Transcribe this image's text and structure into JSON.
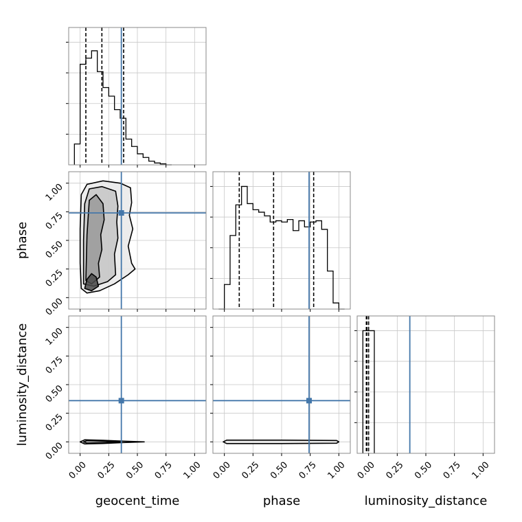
{
  "chart_data": {
    "type": "corner",
    "params": [
      "geocent_time",
      "phase",
      "luminosity_distance"
    ],
    "axis_labels": {
      "x": [
        "geocent_time",
        "phase",
        "luminosity_distance"
      ],
      "y": [
        "phase",
        "luminosity_distance"
      ]
    },
    "ticks": {
      "values": [
        0.0,
        0.25,
        0.5,
        0.75,
        1.0
      ],
      "labels": [
        "0.00",
        "0.25",
        "0.50",
        "0.75",
        "1.00"
      ]
    },
    "ranges": {
      "geocent_time": [
        -0.1,
        1.1
      ],
      "phase": [
        -0.1,
        1.1
      ],
      "luminosity_distance": [
        -0.1,
        1.1
      ]
    },
    "truths": {
      "geocent_time": 0.36,
      "phase": 0.74,
      "luminosity_distance": 0.36
    },
    "truth_color": "#4477aa",
    "grid": true,
    "histograms": {
      "geocent_time": {
        "bin_edges": [
          -0.05,
          0.0,
          0.05,
          0.1,
          0.15,
          0.2,
          0.25,
          0.3,
          0.35,
          0.4,
          0.45,
          0.5,
          0.55,
          0.6,
          0.65,
          0.7,
          0.75,
          0.8
        ],
        "counts": [
          0.17,
          0.82,
          0.87,
          0.93,
          0.76,
          0.63,
          0.56,
          0.45,
          0.38,
          0.21,
          0.15,
          0.09,
          0.06,
          0.03,
          0.015,
          0.008,
          0.0
        ],
        "quantiles": [
          0.05,
          0.19,
          0.38
        ]
      },
      "phase": {
        "bin_edges": [
          -0.05,
          0.0,
          0.05,
          0.1,
          0.15,
          0.2,
          0.25,
          0.3,
          0.35,
          0.4,
          0.45,
          0.5,
          0.55,
          0.6,
          0.65,
          0.7,
          0.75,
          0.8,
          0.85,
          0.9,
          0.95,
          1.0,
          1.05
        ],
        "counts": [
          0.0,
          0.2,
          0.6,
          0.85,
          1.0,
          0.86,
          0.81,
          0.79,
          0.76,
          0.71,
          0.72,
          0.71,
          0.73,
          0.64,
          0.72,
          0.67,
          0.71,
          0.72,
          0.65,
          0.31,
          0.05,
          0.0
        ],
        "quantiles": [
          0.13,
          0.43,
          0.78
        ]
      },
      "luminosity_distance": {
        "bin_edges": [
          -0.05,
          0.0,
          0.05
        ],
        "counts": [
          1.0,
          1.0
        ],
        "quantiles": [
          -0.02,
          -0.015,
          0.0
        ]
      }
    },
    "contours": {
      "phase_vs_geocent_time": {
        "levels": [
          [
            [
              0.01,
              0.08
            ],
            [
              0.06,
              0.04
            ],
            [
              0.17,
              0.06
            ],
            [
              0.3,
              0.12
            ],
            [
              0.42,
              0.2
            ],
            [
              0.48,
              0.25
            ],
            [
              0.45,
              0.3
            ],
            [
              0.42,
              0.45
            ],
            [
              0.46,
              0.6
            ],
            [
              0.43,
              0.72
            ],
            [
              0.45,
              0.83
            ],
            [
              0.44,
              0.96
            ],
            [
              0.35,
              1.0
            ],
            [
              0.2,
              1.02
            ],
            [
              0.06,
              0.99
            ],
            [
              0.01,
              0.9
            ],
            [
              0.0,
              0.6
            ],
            [
              0.0,
              0.3
            ]
          ],
          [
            [
              0.03,
              0.12
            ],
            [
              0.12,
              0.1
            ],
            [
              0.24,
              0.14
            ],
            [
              0.31,
              0.2
            ],
            [
              0.3,
              0.38
            ],
            [
              0.33,
              0.52
            ],
            [
              0.32,
              0.66
            ],
            [
              0.33,
              0.8
            ],
            [
              0.31,
              0.93
            ],
            [
              0.19,
              0.97
            ],
            [
              0.08,
              0.95
            ],
            [
              0.04,
              0.82
            ],
            [
              0.03,
              0.5
            ]
          ],
          [
            [
              0.05,
              0.15
            ],
            [
              0.1,
              0.12
            ],
            [
              0.17,
              0.18
            ],
            [
              0.16,
              0.3
            ],
            [
              0.19,
              0.42
            ],
            [
              0.18,
              0.55
            ],
            [
              0.21,
              0.68
            ],
            [
              0.2,
              0.82
            ],
            [
              0.14,
              0.9
            ],
            [
              0.08,
              0.85
            ],
            [
              0.06,
              0.55
            ]
          ],
          [
            [
              0.04,
              0.08
            ],
            [
              0.1,
              0.06
            ],
            [
              0.16,
              0.1
            ],
            [
              0.14,
              0.18
            ],
            [
              0.1,
              0.21
            ],
            [
              0.06,
              0.16
            ]
          ]
        ]
      },
      "luminosity_distance_vs_geocent_time": {
        "levels": [
          [
            [
              0.0,
              0.0
            ],
            [
              0.04,
              -0.018
            ],
            [
              0.2,
              -0.014
            ],
            [
              0.38,
              -0.006
            ],
            [
              0.56,
              0.0
            ],
            [
              0.38,
              0.006
            ],
            [
              0.2,
              0.014
            ],
            [
              0.04,
              0.018
            ]
          ],
          [
            [
              0.03,
              0.0
            ],
            [
              0.06,
              -0.01
            ],
            [
              0.22,
              -0.006
            ],
            [
              0.35,
              0.0
            ],
            [
              0.22,
              0.006
            ],
            [
              0.06,
              0.01
            ]
          ]
        ]
      },
      "luminosity_distance_vs_phase": {
        "levels": [
          [
            [
              -0.01,
              0.0
            ],
            [
              0.02,
              -0.015
            ],
            [
              0.5,
              -0.015
            ],
            [
              0.98,
              -0.012
            ],
            [
              1.0,
              0.0
            ],
            [
              0.98,
              0.012
            ],
            [
              0.5,
              0.015
            ],
            [
              0.02,
              0.015
            ]
          ]
        ]
      }
    }
  }
}
